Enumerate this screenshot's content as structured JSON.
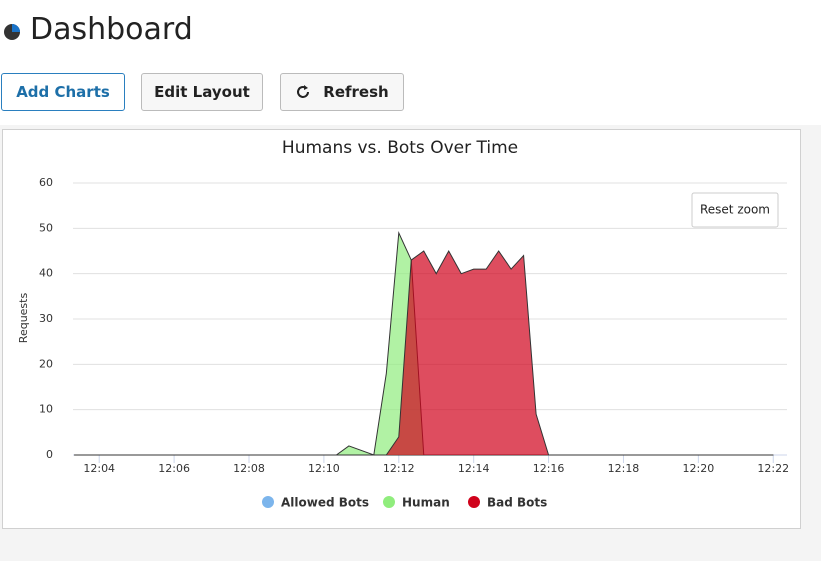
{
  "header": {
    "title": "Dashboard"
  },
  "buttons": [
    "Add Charts",
    "Edit Layout",
    "Refresh"
  ],
  "chart_controls": {
    "reset_zoom": "Reset zoom"
  },
  "chart_data": {
    "type": "area",
    "title": "Humans vs. Bots Over Time",
    "y_label": "Requests",
    "x": [
      3.333,
      10.333,
      10.667,
      11.333,
      11.667,
      12,
      12.333,
      12.667,
      13,
      13.333,
      13.667,
      14,
      14.333,
      14.667,
      15,
      15.333,
      15.667,
      16,
      22
    ],
    "series": [
      {
        "name": "Allowed Bots",
        "color": "#7cb5ec",
        "values": [
          0,
          0,
          0,
          0,
          0,
          0,
          0,
          0,
          0,
          0,
          0,
          0,
          0,
          0,
          0,
          0,
          0,
          0,
          0
        ]
      },
      {
        "name": "Human",
        "color": "#90ed7d",
        "values": [
          0,
          0,
          2,
          0,
          18,
          49,
          43,
          0,
          0,
          0,
          0,
          0,
          0,
          0,
          0,
          0,
          0,
          0,
          0
        ]
      },
      {
        "name": "Bad Bots",
        "color": "#d0021b",
        "values": [
          0,
          0,
          0,
          0,
          0,
          4,
          43,
          45,
          40,
          45,
          40,
          41,
          41,
          45,
          41,
          44,
          9,
          0,
          0
        ]
      }
    ],
    "xlim": [
      3.3,
      22.1
    ],
    "ylim": [
      0,
      60
    ],
    "xticks": [
      {
        "value": 4,
        "label": "12:04"
      },
      {
        "value": 6,
        "label": "12:06"
      },
      {
        "value": 8,
        "label": "12:08"
      },
      {
        "value": 10,
        "label": "12:10"
      },
      {
        "value": 12,
        "label": "12:12"
      },
      {
        "value": 14,
        "label": "12:14"
      },
      {
        "value": 16,
        "label": "12:16"
      },
      {
        "value": 18,
        "label": "12:18"
      },
      {
        "value": 20,
        "label": "12:20"
      },
      {
        "value": 22,
        "label": "12:22"
      }
    ],
    "yticks": [
      0,
      10,
      20,
      30,
      40,
      50,
      60
    ],
    "grid": true
  }
}
